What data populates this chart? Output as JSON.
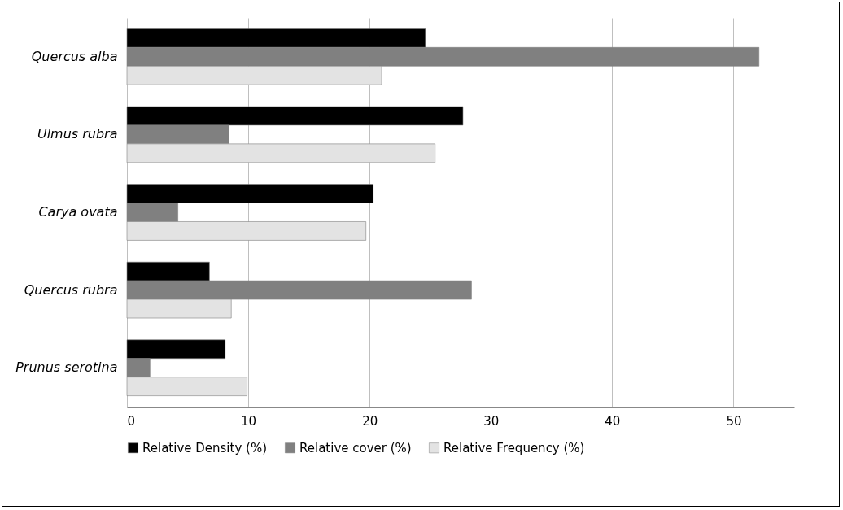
{
  "chart_data": {
    "type": "bar",
    "orientation": "horizontal",
    "categories": [
      "Quercus alba",
      "Ulmus rubra",
      "Carya ovata",
      "Quercus rubra",
      "Prunus serotina"
    ],
    "series": [
      {
        "name": "Relative Density (%)",
        "color": "#000000",
        "values": [
          24.6,
          27.7,
          20.3,
          6.8,
          8.1
        ]
      },
      {
        "name": "Relative cover (%)",
        "color": "#808080",
        "values": [
          52.1,
          8.4,
          4.2,
          28.4,
          1.9
        ]
      },
      {
        "name": "Relative Frequency (%)",
        "color": "#e3e3e3",
        "values": [
          21.0,
          25.4,
          19.7,
          8.6,
          9.9
        ]
      }
    ],
    "xlim": [
      0,
      55
    ],
    "xticks": [
      0,
      10,
      20,
      30,
      40,
      50
    ],
    "grid": "x",
    "legend": "bottom"
  }
}
